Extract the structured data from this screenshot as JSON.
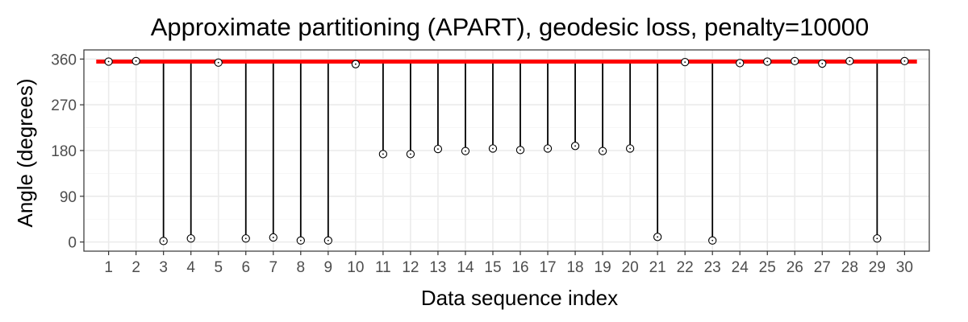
{
  "chart_data": {
    "type": "scatter",
    "title": "Approximate partitioning (APART), geodesic loss, penalty=10000",
    "xlabel": "Data sequence index",
    "ylabel": "Angle (degrees)",
    "x": [
      1,
      2,
      3,
      4,
      5,
      6,
      7,
      8,
      9,
      10,
      11,
      12,
      13,
      14,
      15,
      16,
      17,
      18,
      19,
      20,
      21,
      22,
      23,
      24,
      25,
      26,
      27,
      28,
      29,
      30
    ],
    "x_ticks": [
      "1",
      "2",
      "3",
      "4",
      "5",
      "6",
      "7",
      "8",
      "9",
      "10",
      "11",
      "12",
      "13",
      "14",
      "15",
      "16",
      "17",
      "18",
      "19",
      "20",
      "21",
      "22",
      "23",
      "24",
      "25",
      "26",
      "27",
      "28",
      "29",
      "30"
    ],
    "y_ticks": [
      0,
      90,
      180,
      270,
      360
    ],
    "xlim": [
      0.1,
      30.9
    ],
    "ylim": [
      -18,
      378
    ],
    "points": [
      355,
      356,
      2,
      7,
      353,
      7,
      9,
      3,
      3,
      350,
      173,
      173,
      183,
      179,
      184,
      181,
      184,
      189,
      179,
      184,
      10,
      354,
      3,
      352,
      355,
      356,
      351,
      356,
      7,
      356
    ],
    "segment_line": {
      "value": 355,
      "x_start": 0.55,
      "x_end": 30.45,
      "color": "#ff0000"
    },
    "point_color": "#000000",
    "grid": true,
    "legend": "none"
  }
}
